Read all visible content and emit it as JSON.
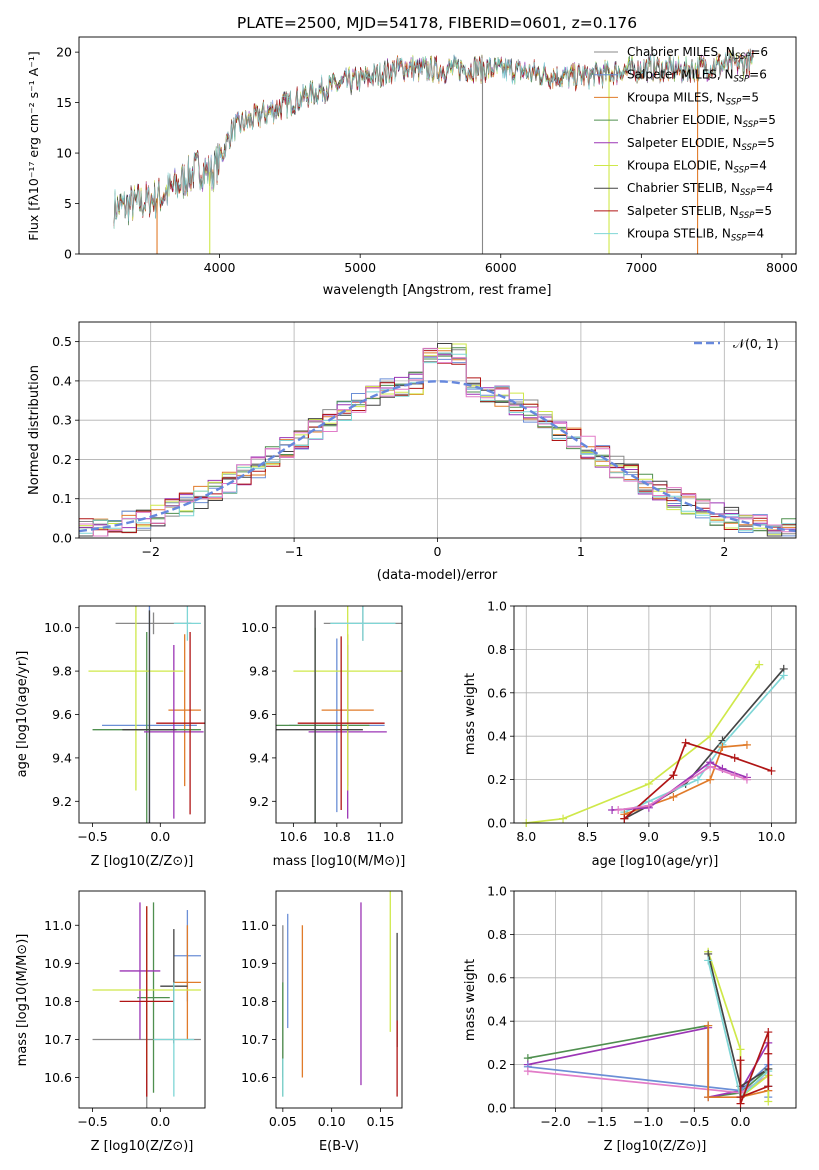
{
  "colors": {
    "chabrier_miles": "#888888",
    "salpeter_miles": "#6b8fd6",
    "kroupa_miles": "#e07b2a",
    "chabrier_elodie": "#4f8f4f",
    "salpeter_elodie": "#9b35b5",
    "kroupa_elodie": "#cfe84a",
    "chabrier_stelib": "#444444",
    "salpeter_stelib": "#b01515",
    "kroupa_stelib": "#7fd6d6",
    "pink": "#e27cc8",
    "gauss": "#6688dd"
  },
  "chart_data": [
    {
      "type": "line",
      "title": "PLATE=2500, MJD=54178, FIBERID=0601, z=0.176",
      "xlabel": "wavelength [Angstrom, rest frame]",
      "ylabel": "Flux [fλ10⁻¹⁷ erg cm⁻² s⁻¹ A⁻¹]",
      "xlim": [
        3000,
        8100
      ],
      "ylim": [
        0,
        21.5
      ],
      "xticks": [
        4000,
        5000,
        6000,
        7000,
        8000
      ],
      "yticks": [
        0,
        5,
        10,
        15,
        20
      ],
      "grid": false,
      "legend_position": "top-right",
      "legend": [
        "Chabrier MILES, NSSP=6",
        "Salpeter MILES, NSSP=6",
        "Kroupa MILES, NSSP=5",
        "Chabrier ELODIE, NSSP=5",
        "Salpeter ELODIE, NSSP=5",
        "Kroupa ELODIE, NSSP=4",
        "Chabrier STELIB, NSSP=4",
        "Salpeter STELIB, NSSP=5",
        "Kroupa STELIB, NSSP=4"
      ],
      "spectrum_envelope": {
        "x": [
          3250,
          3400,
          3550,
          3700,
          3850,
          3950,
          4100,
          4300,
          4500,
          4700,
          4900,
          5100,
          5300,
          5500,
          5700,
          5900,
          6100,
          6300,
          6500,
          6700,
          6900,
          7100,
          7300,
          7500,
          7800
        ],
        "y": [
          4.5,
          5.0,
          5.5,
          6.8,
          8.5,
          8.0,
          12.5,
          13.8,
          15.0,
          16.2,
          17.0,
          17.6,
          18.5,
          18.2,
          18.4,
          18.3,
          18.2,
          17.8,
          17.5,
          17.8,
          18.2,
          18.4,
          18.2,
          18.6,
          19.0
        ]
      }
    },
    {
      "type": "line",
      "xlabel": "(data-model)/error",
      "ylabel": "Normed distribution",
      "xlim": [
        -2.5,
        2.5
      ],
      "ylim": [
        0,
        0.55
      ],
      "xticks": [
        -2,
        -1,
        0,
        1,
        2
      ],
      "yticks": [
        0.0,
        0.1,
        0.2,
        0.3,
        0.4,
        0.5
      ],
      "grid": true,
      "legend_position": "top-right",
      "legend": [
        "𝒩(0, 1)"
      ],
      "histogram_bins": [
        -2.4,
        -2.2,
        -2.0,
        -1.8,
        -1.6,
        -1.4,
        -1.2,
        -1.0,
        -0.8,
        -0.6,
        -0.4,
        -0.2,
        0.0,
        0.2,
        0.4,
        0.6,
        0.8,
        1.0,
        1.2,
        1.4,
        1.6,
        1.8,
        2.0,
        2.2,
        2.4
      ],
      "histogram_mean": [
        0.025,
        0.03,
        0.045,
        0.07,
        0.09,
        0.13,
        0.19,
        0.26,
        0.32,
        0.37,
        0.4,
        0.42,
        0.47,
        0.46,
        0.41,
        0.39,
        0.37,
        0.3,
        0.24,
        0.18,
        0.13,
        0.09,
        0.06,
        0.04,
        0.03
      ]
    },
    {
      "type": "scatter",
      "xlabel": "Z [log10(Z/Z⊙)]",
      "ylabel": "age  [log10(age/yr)]",
      "xlim": [
        -0.6,
        0.33
      ],
      "ylim": [
        9.1,
        10.1
      ],
      "xticks": [
        -0.5,
        0.0
      ],
      "yticks": [
        9.2,
        9.4,
        9.6,
        9.8,
        10.0
      ],
      "points": [
        {
          "x": -0.05,
          "y": 10.02,
          "xerr": 0.28,
          "yerr": 0.05
        },
        {
          "x": -0.08,
          "y": 9.55,
          "xerr": 0.35,
          "yerr": 0.55
        },
        {
          "x": 0.18,
          "y": 9.62,
          "xerr": 0.12,
          "yerr": 0.35
        },
        {
          "x": -0.1,
          "y": 9.53,
          "xerr": 0.4,
          "yerr": 0.45
        },
        {
          "x": 0.1,
          "y": 9.52,
          "xerr": 0.22,
          "yerr": 0.4
        },
        {
          "x": -0.18,
          "y": 9.8,
          "xerr": 0.35,
          "yerr": 0.55
        },
        {
          "x": -0.08,
          "y": 9.53,
          "xerr": 0.2,
          "yerr": 0.55
        },
        {
          "x": 0.22,
          "y": 9.56,
          "xerr": 0.25,
          "yerr": 0.42
        },
        {
          "x": 0.2,
          "y": 10.02,
          "xerr": 0.1,
          "yerr": 0.08
        }
      ]
    },
    {
      "type": "scatter",
      "xlabel": "mass [log10(M/M⊙)]",
      "xlim": [
        10.52,
        11.1
      ],
      "ylim": [
        9.1,
        10.1
      ],
      "xticks": [
        10.6,
        10.8,
        11.0
      ],
      "yticks": [
        9.2,
        9.4,
        9.6,
        9.8,
        10.0
      ],
      "points": [
        {
          "x": 10.92,
          "y": 10.02,
          "xerr": 0.18,
          "yerr": 0.08
        },
        {
          "x": 10.8,
          "y": 9.55,
          "xerr": 0.22,
          "yerr": 0.4
        },
        {
          "x": 10.85,
          "y": 9.62,
          "xerr": 0.12,
          "yerr": 0.35
        },
        {
          "x": 10.7,
          "y": 9.55,
          "xerr": 0.25,
          "yerr": 0.45
        },
        {
          "x": 10.85,
          "y": 9.52,
          "xerr": 0.18,
          "yerr": 0.4
        },
        {
          "x": 10.85,
          "y": 9.8,
          "xerr": 0.25,
          "yerr": 0.55
        },
        {
          "x": 10.7,
          "y": 9.53,
          "xerr": 0.22,
          "yerr": 0.55
        },
        {
          "x": 10.82,
          "y": 9.56,
          "xerr": 0.2,
          "yerr": 0.4
        },
        {
          "x": 10.92,
          "y": 10.02,
          "xerr": 0.15,
          "yerr": 0.08
        }
      ]
    },
    {
      "type": "line",
      "xlabel": "age  [log10(age/yr)]",
      "ylabel": "mass weight",
      "xlim": [
        7.9,
        10.2
      ],
      "ylim": [
        0,
        1.0
      ],
      "xticks": [
        8.0,
        8.5,
        9.0,
        9.5,
        10.0
      ],
      "yticks": [
        0.0,
        0.2,
        0.4,
        0.6,
        0.8,
        1.0
      ],
      "grid": true,
      "series": [
        {
          "x": [
            8.0,
            8.3,
            9.0,
            9.5,
            9.9
          ],
          "y": [
            0.0,
            0.02,
            0.18,
            0.4,
            0.73
          ]
        },
        {
          "x": [
            8.8,
            9.0,
            9.3,
            9.6,
            10.1
          ],
          "y": [
            0.02,
            0.08,
            0.18,
            0.38,
            0.71
          ]
        },
        {
          "x": [
            8.8,
            9.0,
            9.4,
            9.6,
            10.1
          ],
          "y": [
            0.05,
            0.1,
            0.2,
            0.36,
            0.68
          ]
        },
        {
          "x": [
            8.8,
            9.2,
            9.5,
            9.6,
            9.8
          ],
          "y": [
            0.04,
            0.12,
            0.2,
            0.35,
            0.36
          ]
        },
        {
          "x": [
            8.8,
            9.2,
            9.3,
            9.7,
            10.0
          ],
          "y": [
            0.02,
            0.22,
            0.37,
            0.3,
            0.24
          ]
        },
        {
          "x": [
            8.7,
            9.0,
            9.5,
            9.6,
            9.8
          ],
          "y": [
            0.06,
            0.07,
            0.28,
            0.25,
            0.21
          ]
        },
        {
          "x": [
            8.75,
            9.0,
            9.5,
            9.7,
            9.8
          ],
          "y": [
            0.06,
            0.08,
            0.26,
            0.22,
            0.2
          ]
        }
      ]
    },
    {
      "type": "scatter",
      "xlabel": "Z [log10(Z/Z⊙)]",
      "ylabel": "mass [log10(M/M⊙)]",
      "xlim": [
        -0.6,
        0.33
      ],
      "ylim": [
        10.52,
        11.09
      ],
      "xticks": [
        -0.5,
        0.0
      ],
      "yticks": [
        10.6,
        10.7,
        10.8,
        10.9,
        11.0
      ],
      "points": [
        {
          "x": -0.1,
          "y": 10.7,
          "xerr": 0.4,
          "yerr": 0.28
        },
        {
          "x": 0.2,
          "y": 10.92,
          "xerr": 0.1,
          "yerr": 0.12
        },
        {
          "x": 0.2,
          "y": 10.85,
          "xerr": 0.1,
          "yerr": 0.15
        },
        {
          "x": -0.05,
          "y": 10.81,
          "xerr": 0.12,
          "yerr": 0.25
        },
        {
          "x": -0.15,
          "y": 10.88,
          "xerr": 0.15,
          "yerr": 0.18
        },
        {
          "x": -0.1,
          "y": 10.83,
          "xerr": 0.4,
          "yerr": 0.22
        },
        {
          "x": 0.1,
          "y": 10.84,
          "xerr": 0.1,
          "yerr": 0.15
        },
        {
          "x": -0.1,
          "y": 10.8,
          "xerr": 0.2,
          "yerr": 0.25
        },
        {
          "x": 0.1,
          "y": 10.7,
          "xerr": 0.15,
          "yerr": 0.15
        }
      ]
    },
    {
      "type": "scatter",
      "xlabel": "E(B-V)",
      "xlim": [
        0.043,
        0.172
      ],
      "ylim": [
        10.52,
        11.09
      ],
      "xticks": [
        0.05,
        0.1,
        0.15
      ],
      "yticks": [
        10.6,
        10.7,
        10.8,
        10.9,
        11.0
      ],
      "points": [
        {
          "x": 0.05,
          "y": 10.8,
          "yerr": 0.2
        },
        {
          "x": 0.055,
          "y": 10.88,
          "yerr": 0.15
        },
        {
          "x": 0.07,
          "y": 10.8,
          "yerr": 0.2
        },
        {
          "x": 0.05,
          "y": 10.7,
          "yerr": 0.15
        },
        {
          "x": 0.13,
          "y": 10.82,
          "yerr": 0.24
        },
        {
          "x": 0.16,
          "y": 10.92,
          "yerr": 0.2
        },
        {
          "x": 0.167,
          "y": 10.83,
          "yerr": 0.15
        },
        {
          "x": 0.167,
          "y": 10.65,
          "yerr": 0.1
        },
        {
          "x": 0.05,
          "y": 10.6,
          "yerr": 0.05
        }
      ]
    },
    {
      "type": "line",
      "xlabel": "Z [log10(Z/Z⊙)]",
      "ylabel": "mass weight",
      "xlim": [
        -2.45,
        0.6
      ],
      "ylim": [
        0,
        1.0
      ],
      "xticks": [
        -2.0,
        -1.5,
        -1.0,
        -0.5,
        0.0
      ],
      "yticks": [
        0.0,
        0.2,
        0.4,
        0.6,
        0.8,
        1.0
      ],
      "grid": true,
      "series": [
        {
          "x": [
            -2.3,
            -0.35,
            -0.35,
            0.0,
            0.3,
            0.3
          ],
          "y": [
            0.23,
            0.38,
            0.05,
            0.07,
            0.18,
            0.1
          ]
        },
        {
          "x": [
            -2.3,
            -0.35,
            -0.35,
            0.0,
            0.3,
            0.3
          ],
          "y": [
            0.2,
            0.37,
            0.05,
            0.08,
            0.3,
            0.15
          ]
        },
        {
          "x": [
            -2.3,
            0.0,
            0.3,
            0.3,
            0.3
          ],
          "y": [
            0.19,
            0.08,
            0.2,
            0.1,
            0.05
          ]
        },
        {
          "x": [
            -2.3,
            0.0,
            0.3,
            0.3
          ],
          "y": [
            0.17,
            0.07,
            0.15,
            0.08
          ]
        },
        {
          "x": [
            -0.35,
            -0.35,
            0.0,
            0.3
          ],
          "y": [
            0.38,
            0.05,
            0.05,
            0.08
          ]
        },
        {
          "x": [
            -0.35,
            0.0,
            0.0,
            0.3,
            0.3
          ],
          "y": [
            0.72,
            0.27,
            0.05,
            0.15,
            0.03
          ]
        },
        {
          "x": [
            -0.35,
            0.0,
            0.3
          ],
          "y": [
            0.71,
            0.1,
            0.18
          ]
        },
        {
          "x": [
            -0.35,
            0.0,
            0.3
          ],
          "y": [
            0.68,
            0.05,
            0.17
          ]
        },
        {
          "x": [
            0.0,
            0.0,
            0.3,
            0.3,
            0.3,
            0.0
          ],
          "y": [
            0.22,
            0.02,
            0.35,
            0.25,
            0.1,
            0.05
          ]
        }
      ]
    }
  ]
}
